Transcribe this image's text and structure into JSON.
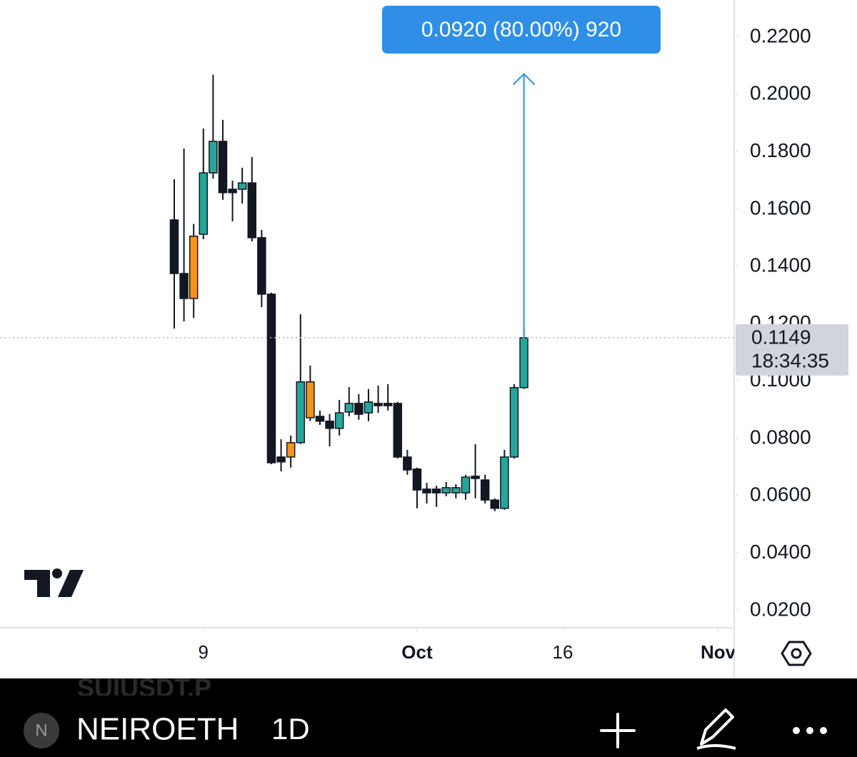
{
  "chart_data": {
    "type": "candlestick",
    "x": [
      0,
      1,
      2,
      3,
      4,
      5,
      6,
      7,
      8,
      9,
      10,
      11,
      12,
      13,
      14,
      15,
      16,
      17,
      18,
      19,
      20,
      21,
      22,
      23,
      24,
      25,
      26,
      27,
      28,
      29,
      30,
      31,
      32,
      33,
      34,
      35,
      36
    ],
    "open": [
      0.156,
      0.1373,
      0.1286,
      0.151,
      0.1724,
      0.1834,
      0.1667,
      0.1667,
      0.1689,
      0.1498,
      0.1301,
      0.0733,
      0.0733,
      0.0783,
      0.0995,
      0.0875,
      0.0858,
      0.0833,
      0.089,
      0.092,
      0.0887,
      0.092,
      0.092,
      0.092,
      0.0733,
      0.0691,
      0.0621,
      0.0621,
      0.0608,
      0.0608,
      0.0608,
      0.0666,
      0.0653,
      0.0583,
      0.0554,
      0.0733,
      0.0975
    ],
    "high": [
      0.1702,
      0.1809,
      0.1546,
      0.1879,
      0.2066,
      0.1909,
      0.1697,
      0.1742,
      0.1779,
      0.1525,
      0.1306,
      0.0795,
      0.0808,
      0.1231,
      0.1052,
      0.0895,
      0.0883,
      0.0932,
      0.0977,
      0.0952,
      0.097,
      0.0982,
      0.0987,
      0.0925,
      0.0758,
      0.0696,
      0.0643,
      0.0633,
      0.0646,
      0.0638,
      0.0671,
      0.0778,
      0.0671,
      0.0589,
      0.0758,
      0.0987,
      0.1186
    ],
    "low": [
      0.1181,
      0.1206,
      0.1218,
      0.1493,
      0.1704,
      0.163,
      0.1555,
      0.1617,
      0.1485,
      0.1256,
      0.0708,
      0.0683,
      0.0696,
      0.0778,
      0.0858,
      0.0845,
      0.077,
      0.0808,
      0.0875,
      0.0863,
      0.0858,
      0.0887,
      0.0895,
      0.0728,
      0.0671,
      0.0554,
      0.0571,
      0.0559,
      0.0596,
      0.0589,
      0.0584,
      0.0589,
      0.0571,
      0.0544,
      0.0549,
      0.0728,
      0.097
    ],
    "close": [
      0.1373,
      0.1286,
      0.1503,
      0.1724,
      0.1834,
      0.1655,
      0.1655,
      0.1689,
      0.1498,
      0.1301,
      0.0713,
      0.0716,
      0.0783,
      0.0995,
      0.087,
      0.0858,
      0.0833,
      0.0887,
      0.092,
      0.0882,
      0.0925,
      0.0912,
      0.0912,
      0.0733,
      0.0688,
      0.0618,
      0.0608,
      0.0608,
      0.0626,
      0.0626,
      0.0663,
      0.0658,
      0.0583,
      0.0554,
      0.0733,
      0.0975,
      0.1149
    ],
    "colors": [
      "#131722",
      "#131722",
      "#f7931a",
      "#26a69a",
      "#26a69a",
      "#131722",
      "#131722",
      "#26a69a",
      "#131722",
      "#131722",
      "#131722",
      "#131722",
      "#f7931a",
      "#26a69a",
      "#f7931a",
      "#131722",
      "#131722",
      "#26a69a",
      "#26a69a",
      "#131722",
      "#26a69a",
      "#131722",
      "#131722",
      "#131722",
      "#131722",
      "#131722",
      "#131722",
      "#131722",
      "#26a69a",
      "#26a69a",
      "#26a69a",
      "#131722",
      "#131722",
      "#131722",
      "#26a69a",
      "#26a69a",
      "#26a69a"
    ],
    "xlim": [
      -17.94,
      57.65
    ],
    "xticks": [
      {
        "value": 3,
        "label": "9"
      },
      {
        "value": 25,
        "label": "Oct"
      },
      {
        "value": 40,
        "label": "16"
      },
      {
        "value": 56,
        "label": "Nov"
      }
    ],
    "ylim": [
      0.014,
      0.2327
    ],
    "yticks": [
      {
        "value": 0.02,
        "label": "0.0200"
      },
      {
        "value": 0.04,
        "label": "0.0400"
      },
      {
        "value": 0.06,
        "label": "0.0600"
      },
      {
        "value": 0.08,
        "label": "0.0800"
      },
      {
        "value": 0.1,
        "label": "0.1000"
      },
      {
        "value": 0.12,
        "label": "0.1200"
      },
      {
        "value": 0.14,
        "label": "0.1400"
      },
      {
        "value": 0.16,
        "label": "0.1600"
      },
      {
        "value": 0.18,
        "label": "0.1800"
      },
      {
        "value": 0.2,
        "label": "0.2000"
      },
      {
        "value": 0.22,
        "label": "0.2200"
      }
    ],
    "last_price": 0.1149,
    "countdown": "18:34:35",
    "measure": {
      "label": "0.0920 (80.00%) 920",
      "from": 0.1149,
      "to": 0.2069,
      "color": "#2f8fe6"
    }
  },
  "toolbar": {
    "ghost_symbol": "SUIUSDT.P",
    "icon_letter": "N",
    "symbol": "NEIROETH",
    "interval": "1D"
  }
}
